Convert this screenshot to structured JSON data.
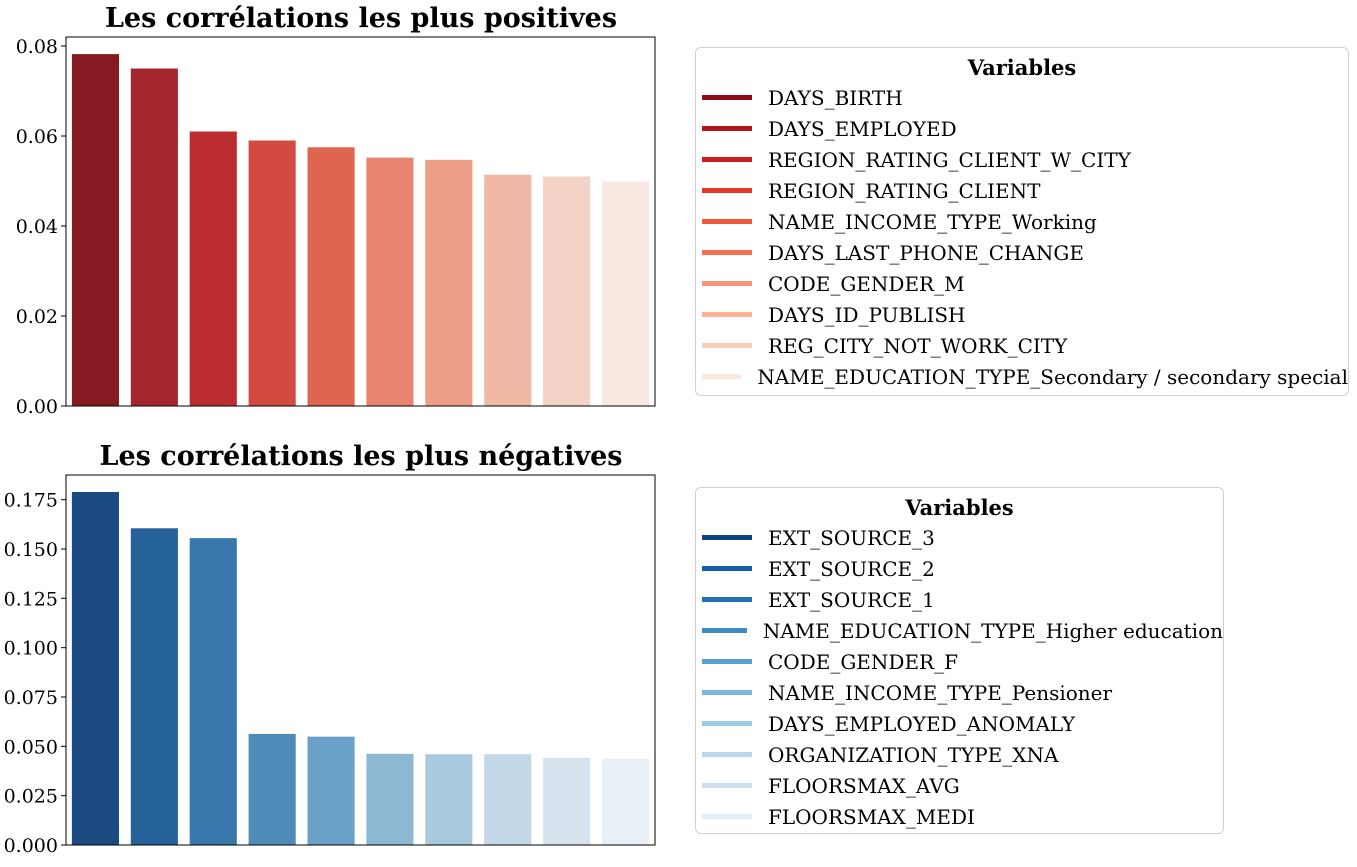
{
  "chart_data": [
    {
      "type": "bar",
      "title": "Les corrélations les plus positives",
      "xlabel": "",
      "ylabel": "",
      "ylim": [
        0,
        0.082
      ],
      "yticks": [
        "0.00",
        "0.02",
        "0.04",
        "0.06",
        "0.08"
      ],
      "ytick_values": [
        0,
        0.02,
        0.04,
        0.06,
        0.08
      ],
      "categories": [
        "DAYS_BIRTH",
        "DAYS_EMPLOYED",
        "REGION_RATING_CLIENT_W_CITY",
        "REGION_RATING_CLIENT",
        "NAME_INCOME_TYPE_Working",
        "DAYS_LAST_PHONE_CHANGE",
        "CODE_GENDER_M",
        "DAYS_ID_PUBLISH",
        "REG_CITY_NOT_WORK_CITY",
        "NAME_EDUCATION_TYPE_Secondary / secondary special"
      ],
      "values": [
        0.0782,
        0.075,
        0.061,
        0.059,
        0.0575,
        0.0552,
        0.0547,
        0.0514,
        0.051,
        0.0499
      ],
      "bar_colors": [
        "#861a22",
        "#a4262c",
        "#bb2d2f",
        "#d24a40",
        "#e0654f",
        "#e88570",
        "#ec9f86",
        "#f0b9a6",
        "#f4d2c5",
        "#f8e8e1"
      ],
      "legend": {
        "title": "Variables",
        "placement": "right",
        "items": [
          "DAYS_BIRTH",
          "DAYS_EMPLOYED",
          "REGION_RATING_CLIENT_W_CITY",
          "REGION_RATING_CLIENT",
          "NAME_INCOME_TYPE_Working",
          "DAYS_LAST_PHONE_CHANGE",
          "CODE_GENDER_M",
          "DAYS_ID_PUBLISH",
          "REG_CITY_NOT_WORK_CITY",
          "NAME_EDUCATION_TYPE_Secondary / secondary special"
        ],
        "colors": [
          "#8e0a16",
          "#b3141b",
          "#cb1e22",
          "#e8372b",
          "#f05a40",
          "#f7714f",
          "#f99577",
          "#fcb094",
          "#fdcdb7",
          "#fee6d9"
        ]
      }
    },
    {
      "type": "bar",
      "title": "Les corrélations les plus négatives",
      "xlabel": "",
      "ylabel": "",
      "ylim": [
        0,
        0.1875
      ],
      "yticks": [
        "0.000",
        "0.025",
        "0.050",
        "0.075",
        "0.100",
        "0.125",
        "0.150",
        "0.175"
      ],
      "ytick_values": [
        0,
        0.025,
        0.05,
        0.075,
        0.1,
        0.125,
        0.15,
        0.175
      ],
      "categories": [
        "EXT_SOURCE_3",
        "EXT_SOURCE_2",
        "EXT_SOURCE_1",
        "NAME_EDUCATION_TYPE_Higher education",
        "CODE_GENDER_F",
        "NAME_INCOME_TYPE_Pensioner",
        "DAYS_EMPLOYED_ANOMALY",
        "ORGANIZATION_TYPE_XNA",
        "FLOORSMAX_AVG",
        "FLOORSMAX_MEDI"
      ],
      "values": [
        0.1789,
        0.1605,
        0.1555,
        0.0563,
        0.0549,
        0.0462,
        0.046,
        0.046,
        0.0442,
        0.0438
      ],
      "bar_colors": [
        "#1a4a7f",
        "#25629a",
        "#3877ac",
        "#4f8bb9",
        "#6aa1c8",
        "#8cb8d2",
        "#a9c9dd",
        "#c4d7e8",
        "#d6e3ef",
        "#e8f0f7"
      ],
      "legend": {
        "title": "Variables",
        "placement": "right",
        "items": [
          "EXT_SOURCE_3",
          "EXT_SOURCE_2",
          "EXT_SOURCE_1",
          "NAME_EDUCATION_TYPE_Higher education",
          "CODE_GENDER_F",
          "NAME_INCOME_TYPE_Pensioner",
          "DAYS_EMPLOYED_ANOMALY",
          "ORGANIZATION_TYPE_XNA",
          "FLOORSMAX_AVG",
          "FLOORSMAX_MEDI"
        ],
        "colors": [
          "#0b4285",
          "#1460a8",
          "#2372b3",
          "#3d8bc3",
          "#5aa0cd",
          "#7db7da",
          "#9dcbe3",
          "#b8d7ea",
          "#cfe1f1",
          "#e1edf8"
        ]
      }
    }
  ]
}
